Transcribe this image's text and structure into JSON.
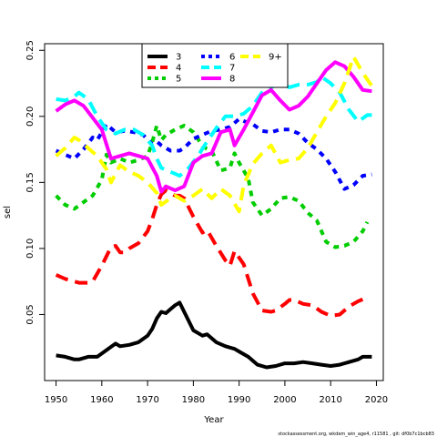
{
  "chart_data": {
    "type": "line",
    "xlabel": "Year",
    "ylabel": "sel",
    "xlim": [
      1947.5,
      2021.5
    ],
    "ylim": [
      0.0,
      0.255
    ],
    "xticks": [
      1950,
      1960,
      1970,
      1980,
      1990,
      2000,
      2010,
      2020
    ],
    "yticks": [
      0.05,
      0.1,
      0.15,
      0.2,
      0.25
    ],
    "ytick_labels": [
      "0.05",
      "0.10",
      "0.15",
      "0.20",
      "0.25"
    ],
    "footer": "stockassessment.org, wkdem_win_age4, r11581 , git: df0b7c1bcb83",
    "legend_placement": "top",
    "grid": false,
    "series": [
      {
        "name": "3",
        "color": "#000000",
        "dash": "solid",
        "x": [
          1950,
          1952,
          1954,
          1955,
          1957,
          1959,
          1961,
          1963,
          1964,
          1966,
          1968,
          1970,
          1971,
          1972,
          1973,
          1974,
          1975,
          1976,
          1977,
          1978,
          1980,
          1982,
          1983,
          1985,
          1987,
          1989,
          1990,
          1992,
          1994,
          1996,
          1998,
          2000,
          2002,
          2004,
          2006,
          2008,
          2010,
          2012,
          2014,
          2016,
          2017,
          2019
        ],
        "y": [
          0.019,
          0.018,
          0.016,
          0.016,
          0.018,
          0.018,
          0.023,
          0.028,
          0.026,
          0.027,
          0.029,
          0.034,
          0.039,
          0.047,
          0.052,
          0.051,
          0.054,
          0.057,
          0.059,
          0.052,
          0.038,
          0.034,
          0.035,
          0.029,
          0.026,
          0.024,
          0.022,
          0.018,
          0.012,
          0.01,
          0.011,
          0.013,
          0.013,
          0.014,
          0.013,
          0.012,
          0.011,
          0.012,
          0.014,
          0.016,
          0.018,
          0.018
        ]
      },
      {
        "name": "4",
        "color": "#ff0000",
        "dash": "long",
        "x": [
          1950,
          1952,
          1954,
          1955,
          1957,
          1958,
          1960,
          1962,
          1963,
          1964,
          1965,
          1966,
          1968,
          1970,
          1971,
          1972,
          1973,
          1974,
          1975,
          1976,
          1977,
          1978,
          1980,
          1982,
          1983,
          1985,
          1987,
          1988,
          1989,
          1991,
          1993,
          1995,
          1997,
          1998,
          2000,
          2001,
          2002,
          2004,
          2006,
          2008,
          2010,
          2012,
          2014,
          2015,
          2016,
          2018
        ],
        "y": [
          0.08,
          0.077,
          0.075,
          0.074,
          0.074,
          0.075,
          0.087,
          0.101,
          0.102,
          0.097,
          0.097,
          0.1,
          0.104,
          0.113,
          0.122,
          0.133,
          0.141,
          0.144,
          0.142,
          0.14,
          0.14,
          0.138,
          0.124,
          0.112,
          0.114,
          0.102,
          0.091,
          0.087,
          0.098,
          0.088,
          0.066,
          0.053,
          0.052,
          0.053,
          0.058,
          0.061,
          0.061,
          0.058,
          0.057,
          0.052,
          0.049,
          0.05,
          0.056,
          0.058,
          0.06,
          0.063
        ]
      },
      {
        "name": "5",
        "color": "#00cd00",
        "dash": "short",
        "x": [
          1950,
          1952,
          1954,
          1956,
          1958,
          1960,
          1961,
          1962,
          1964,
          1966,
          1968,
          1970,
          1971,
          1972,
          1973,
          1974,
          1976,
          1978,
          1980,
          1981,
          1982,
          1984,
          1986,
          1988,
          1989,
          1990,
          1992,
          1993,
          1995,
          1997,
          1999,
          2001,
          2003,
          2005,
          2007,
          2009,
          2011,
          2013,
          2015,
          2017,
          2018
        ],
        "y": [
          0.14,
          0.133,
          0.13,
          0.135,
          0.14,
          0.152,
          0.171,
          0.165,
          0.168,
          0.165,
          0.167,
          0.17,
          0.18,
          0.193,
          0.182,
          0.186,
          0.19,
          0.193,
          0.188,
          0.183,
          0.177,
          0.174,
          0.159,
          0.161,
          0.172,
          0.165,
          0.153,
          0.135,
          0.125,
          0.13,
          0.138,
          0.139,
          0.136,
          0.127,
          0.121,
          0.105,
          0.101,
          0.102,
          0.105,
          0.113,
          0.12
        ]
      },
      {
        "name": "6",
        "color": "#0000ff",
        "dash": "short",
        "x": [
          1950,
          1952,
          1954,
          1956,
          1958,
          1959,
          1961,
          1963,
          1965,
          1967,
          1969,
          1971,
          1972,
          1973,
          1975,
          1977,
          1978,
          1980,
          1982,
          1984,
          1986,
          1988,
          1990,
          1992,
          1993,
          1995,
          1997,
          1999,
          2001,
          2003,
          2005,
          2007,
          2009,
          2011,
          2013,
          2015,
          2017,
          2019
        ],
        "y": [
          0.174,
          0.171,
          0.168,
          0.175,
          0.184,
          0.182,
          0.194,
          0.188,
          0.189,
          0.188,
          0.186,
          0.179,
          0.181,
          0.178,
          0.174,
          0.174,
          0.176,
          0.183,
          0.186,
          0.189,
          0.19,
          0.192,
          0.198,
          0.195,
          0.194,
          0.189,
          0.188,
          0.19,
          0.19,
          0.187,
          0.18,
          0.175,
          0.168,
          0.158,
          0.145,
          0.148,
          0.155,
          0.156
        ]
      },
      {
        "name": "7",
        "color": "#00ffff",
        "dash": "long",
        "x": [
          1950,
          1952,
          1954,
          1955,
          1957,
          1959,
          1961,
          1963,
          1965,
          1967,
          1969,
          1971,
          1972,
          1973,
          1975,
          1977,
          1979,
          1981,
          1983,
          1985,
          1987,
          1989,
          1991,
          1993,
          1995,
          1997,
          1999,
          2001,
          2003,
          2005,
          2007,
          2008,
          2010,
          2012,
          2014,
          2016,
          2018,
          2019
        ],
        "y": [
          0.213,
          0.212,
          0.215,
          0.218,
          0.213,
          0.2,
          0.19,
          0.187,
          0.19,
          0.19,
          0.186,
          0.178,
          0.168,
          0.161,
          0.158,
          0.155,
          0.161,
          0.17,
          0.181,
          0.191,
          0.2,
          0.2,
          0.202,
          0.208,
          0.218,
          0.222,
          0.225,
          0.222,
          0.224,
          0.224,
          0.226,
          0.23,
          0.225,
          0.218,
          0.205,
          0.196,
          0.201,
          0.201
        ]
      },
      {
        "name": "8",
        "color": "#ff00ff",
        "dash": "solid",
        "x": [
          1950,
          1952,
          1954,
          1956,
          1958,
          1960,
          1962,
          1964,
          1966,
          1968,
          1970,
          1972,
          1973,
          1974,
          1976,
          1978,
          1980,
          1982,
          1984,
          1986,
          1988,
          1989,
          1991,
          1993,
          1995,
          1997,
          1999,
          2001,
          2003,
          2005,
          2007,
          2009,
          2011,
          2013,
          2015,
          2017,
          2019
        ],
        "y": [
          0.204,
          0.209,
          0.212,
          0.208,
          0.199,
          0.19,
          0.168,
          0.17,
          0.172,
          0.17,
          0.168,
          0.155,
          0.143,
          0.147,
          0.144,
          0.147,
          0.165,
          0.17,
          0.172,
          0.188,
          0.19,
          0.178,
          0.19,
          0.203,
          0.216,
          0.22,
          0.212,
          0.205,
          0.208,
          0.215,
          0.225,
          0.235,
          0.241,
          0.238,
          0.23,
          0.22,
          0.219
        ]
      },
      {
        "name": "9+",
        "color": "#ffff00",
        "dash": "long",
        "x": [
          1950,
          1952,
          1954,
          1955,
          1957,
          1959,
          1961,
          1962,
          1964,
          1966,
          1968,
          1970,
          1972,
          1973,
          1975,
          1976,
          1978,
          1980,
          1982,
          1984,
          1986,
          1988,
          1990,
          1991,
          1993,
          1995,
          1997,
          1999,
          2001,
          2003,
          2005,
          2007,
          2009,
          2011,
          2013,
          2015,
          2017,
          2019
        ],
        "y": [
          0.17,
          0.176,
          0.184,
          0.182,
          0.176,
          0.17,
          0.16,
          0.15,
          0.163,
          0.158,
          0.155,
          0.15,
          0.142,
          0.133,
          0.138,
          0.14,
          0.136,
          0.14,
          0.145,
          0.138,
          0.145,
          0.14,
          0.128,
          0.148,
          0.164,
          0.172,
          0.178,
          0.165,
          0.167,
          0.168,
          0.176,
          0.188,
          0.2,
          0.21,
          0.225,
          0.245,
          0.233,
          0.223
        ]
      }
    ]
  }
}
